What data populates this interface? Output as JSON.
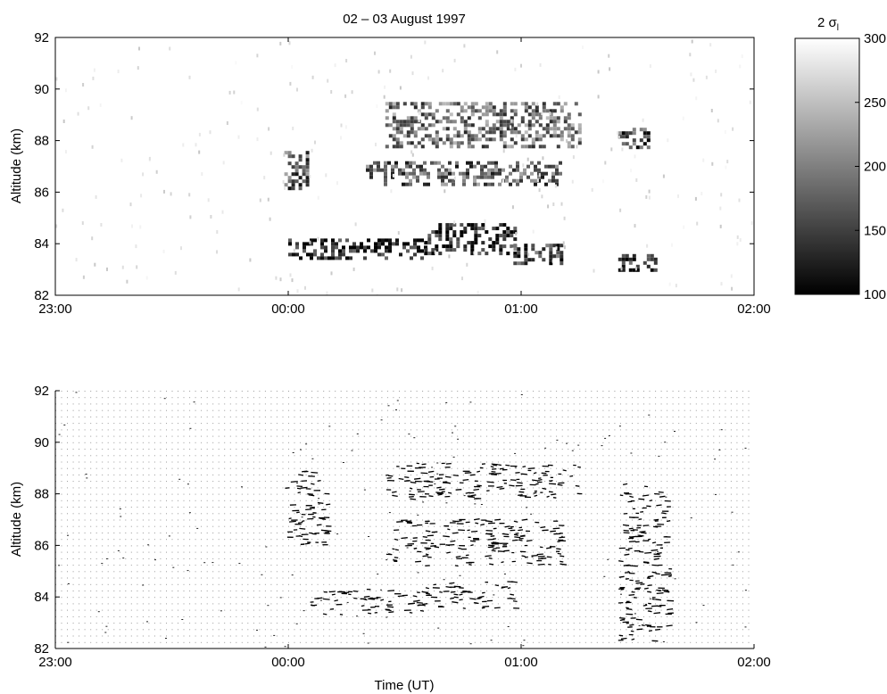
{
  "chart_data": [
    {
      "type": "heatmap",
      "title": "02 – 03 August 1997",
      "xlabel": "",
      "ylabel": "Altitude (km)",
      "x_ticks": [
        "23:00",
        "00:00",
        "01:00",
        "02:00"
      ],
      "y_ticks": [
        "82",
        "84",
        "86",
        "88",
        "90",
        "92"
      ],
      "xlim": [
        "23:00",
        "02:00"
      ],
      "ylim": [
        82,
        92
      ],
      "colorbar": {
        "label": "2 σ",
        "label_subscript": "l",
        "ticks": [
          "100",
          "150",
          "200",
          "250",
          "300"
        ],
        "range": [
          100,
          300
        ],
        "colormap": "gray (black = low, white = high)"
      },
      "features": [
        {
          "time_start": "00:00",
          "time_end": "00:35",
          "alt_min": 83.4,
          "alt_max": 84.2,
          "value": 125
        },
        {
          "time_start": "00:35",
          "time_end": "00:58",
          "alt_min": 83.6,
          "alt_max": 84.8,
          "value": 130
        },
        {
          "time_start": "00:58",
          "time_end": "01:10",
          "alt_min": 83.2,
          "alt_max": 84.0,
          "value": 150
        },
        {
          "time_start": "00:20",
          "time_end": "01:10",
          "alt_min": 86.3,
          "alt_max": 87.2,
          "value": 175
        },
        {
          "time_start": "00:25",
          "time_end": "01:15",
          "alt_min": 87.8,
          "alt_max": 89.5,
          "value": 190
        },
        {
          "time_start": "23:59",
          "time_end": "00:05",
          "alt_min": 86.2,
          "alt_max": 87.6,
          "value": 170
        },
        {
          "time_start": "01:25",
          "time_end": "01:35",
          "alt_min": 83.0,
          "alt_max": 83.6,
          "value": 140
        },
        {
          "time_start": "01:25",
          "time_end": "01:33",
          "alt_min": 87.8,
          "alt_max": 88.5,
          "value": 160
        }
      ]
    },
    {
      "type": "scatter",
      "title": "",
      "xlabel": "Time (UT)",
      "ylabel": "Altitude (km)",
      "x_ticks": [
        "23:00",
        "00:00",
        "01:00",
        "02:00"
      ],
      "y_ticks": [
        "82",
        "84",
        "86",
        "88",
        "90",
        "92"
      ],
      "xlim": [
        "23:00",
        "02:00"
      ],
      "ylim": [
        82,
        92
      ],
      "grid": "dotted points at every sample",
      "marker": "short horizontal dashes",
      "features": [
        {
          "time_start": "00:05",
          "time_end": "00:35",
          "alt_min": 83.3,
          "alt_max": 84.3
        },
        {
          "time_start": "00:35",
          "time_end": "00:58",
          "alt_min": 83.5,
          "alt_max": 84.6
        },
        {
          "time_start": "00:25",
          "time_end": "01:10",
          "alt_min": 85.2,
          "alt_max": 87.0
        },
        {
          "time_start": "00:25",
          "time_end": "01:15",
          "alt_min": 87.8,
          "alt_max": 89.2
        },
        {
          "time_start": "23:59",
          "time_end": "00:10",
          "alt_min": 86.0,
          "alt_max": 89.0
        },
        {
          "time_start": "01:25",
          "time_end": "01:38",
          "alt_min": 82.3,
          "alt_max": 88.4
        }
      ]
    }
  ]
}
